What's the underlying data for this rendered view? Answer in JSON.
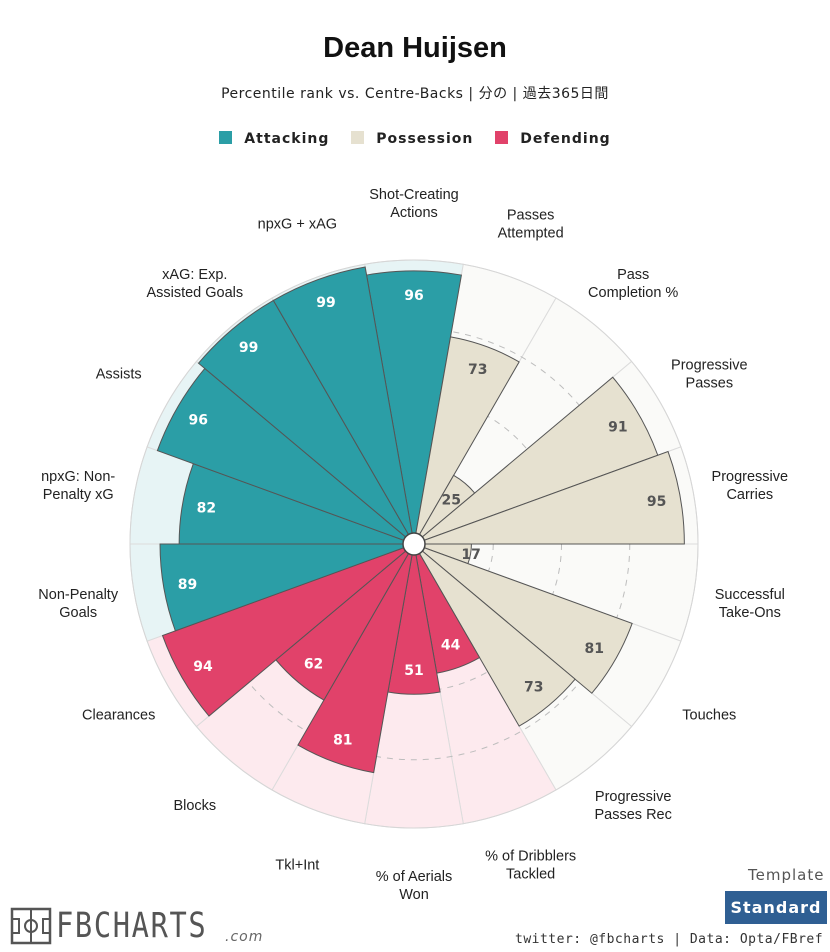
{
  "header": {
    "title": "Dean Huijsen",
    "subtitle": "Percentile rank vs. Centre-Backs | 分の | 過去365日間"
  },
  "legend": [
    {
      "label": "Attacking",
      "color": "#2b9ea6"
    },
    {
      "label": "Possession",
      "color": "#e6e1d0"
    },
    {
      "label": "Defending",
      "color": "#e1426a"
    }
  ],
  "chart_data": {
    "type": "polar-bar",
    "title": "Dean Huijsen",
    "max": 100,
    "categories": {
      "Attacking": {
        "fill": "#2b9ea6",
        "bg": "#e7f4f5"
      },
      "Possession": {
        "fill": "#e6e1d0",
        "bg": "#fafaf8"
      },
      "Defending": {
        "fill": "#e1426a",
        "bg": "#fdeaee"
      }
    },
    "stats": [
      {
        "label": "Shot-Creating Actions",
        "value": 96,
        "category": "Attacking"
      },
      {
        "label": "Passes Attempted",
        "value": 73,
        "category": "Possession"
      },
      {
        "label": "Pass Completion %",
        "value": 25,
        "category": "Possession"
      },
      {
        "label": "Progressive Passes",
        "value": 91,
        "category": "Possession"
      },
      {
        "label": "Progressive Carries",
        "value": 95,
        "category": "Possession"
      },
      {
        "label": "Successful Take-Ons",
        "value": 17,
        "category": "Possession"
      },
      {
        "label": "Touches",
        "value": 81,
        "category": "Possession"
      },
      {
        "label": "Progressive Passes Rec",
        "value": 73,
        "category": "Possession"
      },
      {
        "label": "% of Dribblers Tackled",
        "value": 44,
        "category": "Defending"
      },
      {
        "label": "% of Aerials Won",
        "value": 51,
        "category": "Defending"
      },
      {
        "label": "Tkl+Int",
        "value": 81,
        "category": "Defending"
      },
      {
        "label": "Blocks",
        "value": 62,
        "category": "Defending"
      },
      {
        "label": "Clearances",
        "value": 94,
        "category": "Defending"
      },
      {
        "label": "Non-Penalty Goals",
        "value": 89,
        "category": "Attacking"
      },
      {
        "label": "npxG: Non-Penalty xG",
        "value": 82,
        "category": "Attacking"
      },
      {
        "label": "Assists",
        "value": 96,
        "category": "Attacking"
      },
      {
        "label": "xAG: Exp. Assisted Goals",
        "value": 99,
        "category": "Attacking"
      },
      {
        "label": "npxG + xAG",
        "value": 99,
        "category": "Attacking"
      }
    ],
    "label_lines": [
      [
        "Shot-Creating",
        "Actions"
      ],
      [
        "Passes",
        "Attempted"
      ],
      [
        "Pass",
        "Completion %"
      ],
      [
        "Progressive",
        "Passes"
      ],
      [
        "Progressive",
        "Carries"
      ],
      [
        "Successful",
        "Take-Ons"
      ],
      [
        "Touches"
      ],
      [
        "Progressive",
        "Passes Rec"
      ],
      [
        "% of Dribblers",
        "Tackled"
      ],
      [
        "% of Aerials",
        "Won"
      ],
      [
        "Tkl+Int"
      ],
      [
        "Blocks"
      ],
      [
        "Clearances"
      ],
      [
        "Non-Penalty",
        "Goals"
      ],
      [
        "npxG: Non-",
        "Penalty xG"
      ],
      [
        "Assists"
      ],
      [
        "xAG: Exp.",
        "Assisted Goals"
      ],
      [
        "npxG + xAG"
      ]
    ]
  },
  "footer": {
    "brand": "FBCHARTS",
    "brand_suffix": ".com",
    "template_label": "Template",
    "template_value": "Standard",
    "credit": "twitter: @fbcharts | Data: Opta/FBref"
  }
}
